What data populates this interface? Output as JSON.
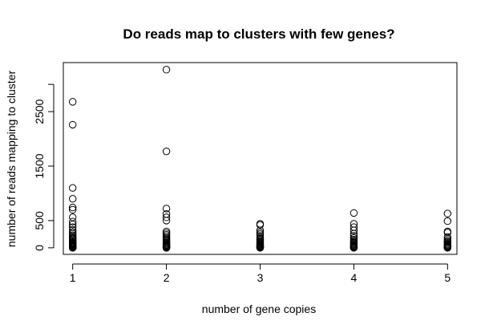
{
  "chart_data": {
    "type": "scatter",
    "title": "Do reads map to clusters with few genes?",
    "xlabel": "number of gene copies",
    "ylabel": "number of reads mapping to cluster",
    "xlim": [
      0.9,
      5.1
    ],
    "ylim": [
      -120,
      3400
    ],
    "x_ticks": [
      1,
      2,
      3,
      4,
      5
    ],
    "y_ticks": [
      0,
      500,
      1500,
      2500
    ],
    "y_tick_labels": [
      "0",
      "500",
      "1500",
      "2500"
    ],
    "extra_y_tick": 3000,
    "grid": false,
    "marker": "open-circle",
    "series": [
      {
        "x": [
          1,
          1,
          1,
          1,
          1,
          1,
          1,
          1,
          1,
          1,
          1,
          1,
          1,
          1,
          1,
          1,
          1,
          1,
          1,
          1,
          1,
          1,
          1,
          1,
          1,
          1,
          1,
          1,
          1,
          1,
          1,
          1,
          1,
          1,
          1,
          1
        ],
        "y": [
          2680,
          2260,
          1100,
          900,
          740,
          700,
          560,
          480,
          430,
          380,
          330,
          290,
          260,
          230,
          200,
          180,
          160,
          140,
          120,
          100,
          90,
          80,
          70,
          60,
          50,
          40,
          30,
          25,
          20,
          15,
          10,
          8,
          6,
          4,
          2,
          0
        ]
      },
      {
        "x": [
          2,
          2,
          2,
          2,
          2,
          2,
          2,
          2,
          2,
          2,
          2,
          2,
          2,
          2,
          2,
          2,
          2,
          2,
          2,
          2,
          2,
          2,
          2,
          2,
          2,
          2,
          2,
          2
        ],
        "y": [
          3270,
          1770,
          720,
          620,
          560,
          500,
          300,
          270,
          240,
          210,
          180,
          160,
          140,
          120,
          100,
          85,
          70,
          55,
          45,
          35,
          25,
          18,
          12,
          8,
          5,
          3,
          1,
          0
        ]
      },
      {
        "x": [
          3,
          3,
          3,
          3,
          3,
          3,
          3,
          3,
          3,
          3,
          3,
          3,
          3,
          3,
          3,
          3,
          3,
          3,
          3,
          3,
          3,
          3
        ],
        "y": [
          440,
          420,
          320,
          280,
          250,
          220,
          190,
          170,
          150,
          130,
          110,
          95,
          80,
          65,
          50,
          40,
          30,
          20,
          12,
          6,
          2,
          0
        ]
      },
      {
        "x": [
          4,
          4,
          4,
          4,
          4,
          4,
          4,
          4,
          4,
          4,
          4,
          4,
          4,
          4,
          4,
          4,
          4,
          4,
          4,
          4,
          4
        ],
        "y": [
          640,
          440,
          380,
          320,
          260,
          220,
          180,
          150,
          125,
          105,
          90,
          75,
          60,
          45,
          35,
          25,
          15,
          10,
          5,
          2,
          0
        ]
      },
      {
        "x": [
          5,
          5,
          5,
          5,
          5,
          5,
          5,
          5,
          5,
          5,
          5,
          5,
          5,
          5,
          5,
          5,
          5,
          5
        ],
        "y": [
          630,
          490,
          300,
          280,
          200,
          160,
          130,
          110,
          90,
          70,
          55,
          40,
          30,
          20,
          12,
          6,
          2,
          0
        ]
      }
    ]
  }
}
